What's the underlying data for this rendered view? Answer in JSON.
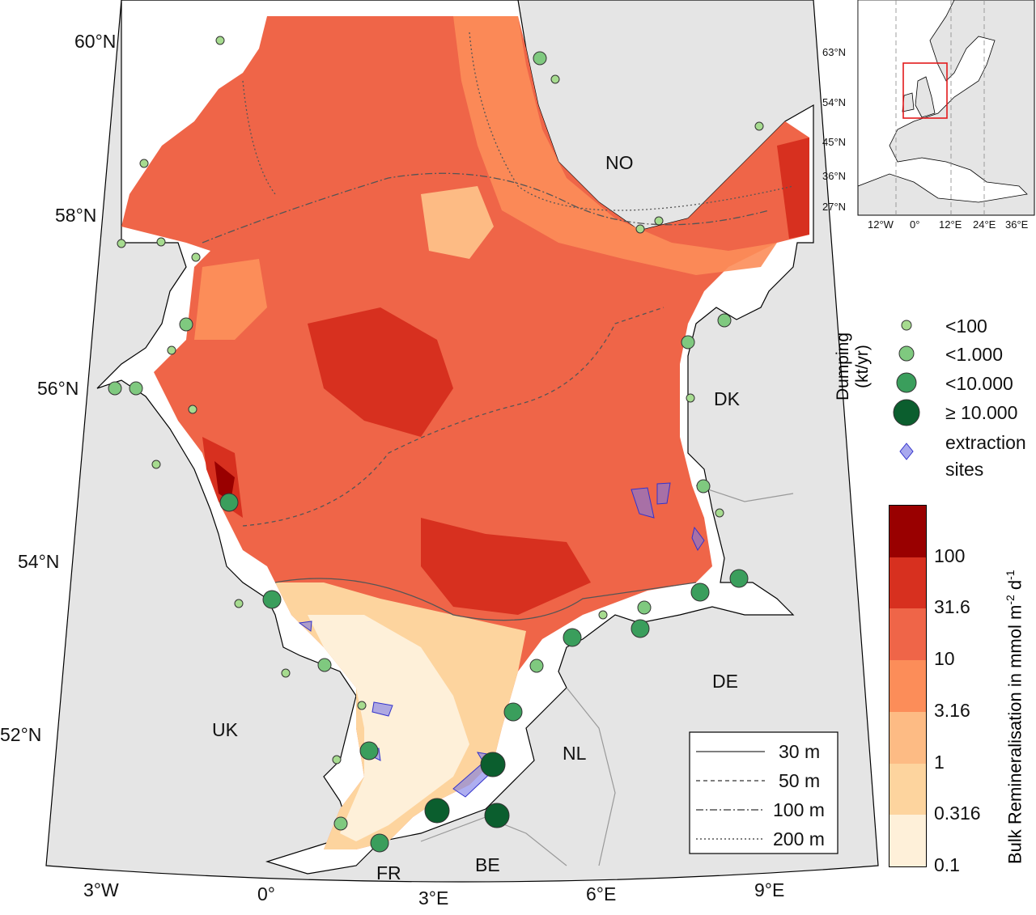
{
  "main_map": {
    "lat_labels": [
      "60°N",
      "58°N",
      "56°N",
      "54°N",
      "52°N"
    ],
    "lon_labels": [
      "3°W",
      "0°",
      "3°E",
      "6°E",
      "9°E"
    ],
    "country_labels": {
      "NO": "NO",
      "DK": "DK",
      "DE": "DE",
      "NL": "NL",
      "BE": "BE",
      "FR": "FR",
      "UK": "UK"
    },
    "colors": {
      "land": "#e5e5e5",
      "sea_outside": "#ffffff",
      "dumping": "#7fc97f",
      "dumping_dark": "#1b7c3f",
      "extraction": "#3333cc"
    }
  },
  "inset_map": {
    "lat_labels": [
      "63°N",
      "54°N",
      "45°N",
      "36°N",
      "27°N"
    ],
    "lon_labels": [
      "12°W",
      "0°",
      "12°E",
      "24°E",
      "36°E"
    ],
    "region_box_color": "#e31a1c"
  },
  "dumping_legend": {
    "title_line1": "Dumping",
    "title_line2": "(kt/yr)",
    "items": [
      {
        "label": "<100",
        "color": "#a6db8f"
      },
      {
        "label": "<1.000",
        "color": "#7fc97f"
      },
      {
        "label": "<10.000",
        "color": "#3a9e5c"
      },
      {
        "label": "≥ 10.000",
        "color": "#0b5e2e"
      }
    ],
    "extraction_label_1": "extraction",
    "extraction_label_2": "sites"
  },
  "depth_legend": {
    "items": [
      {
        "label": "30 m",
        "style": "solid"
      },
      {
        "label": "50 m",
        "style": "dashed"
      },
      {
        "label": "100 m",
        "style": "dash-dot"
      },
      {
        "label": "200 m",
        "style": "dotted"
      }
    ]
  },
  "colorbar": {
    "label": "Bulk Remineralisation in mmol m",
    "label_sup1": "-2",
    "label_mid": " d",
    "label_sup2": "-1",
    "ticks": [
      "0.1",
      "0.316",
      "1",
      "3.16",
      "10",
      "31.6",
      "100"
    ],
    "colors": [
      "#fef0d9",
      "#fdd49e",
      "#fdbb84",
      "#fc8d59",
      "#ef6548",
      "#d7301f",
      "#990000"
    ]
  }
}
